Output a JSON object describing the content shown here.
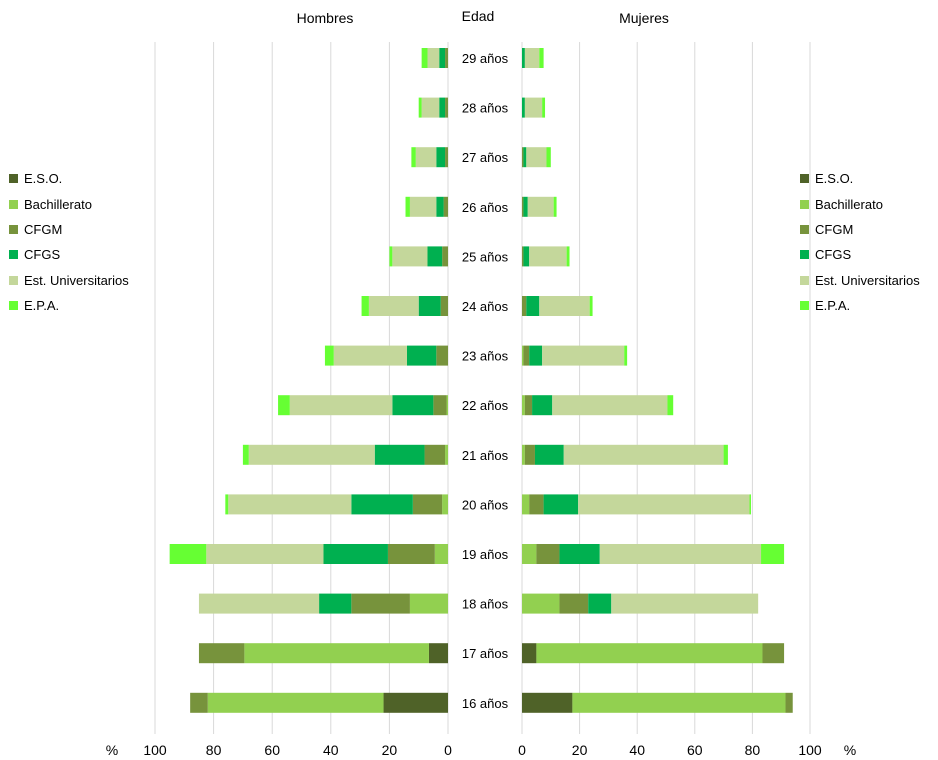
{
  "chart_data": {
    "type": "bar",
    "subtype": "population-pyramid (stacked horizontal bars)",
    "headers": {
      "left": "Hombres",
      "center": "Edad",
      "right": "Mujeres"
    },
    "unit_label": "%",
    "xlim": [
      0,
      100
    ],
    "ticks": [
      0,
      20,
      40,
      60,
      80,
      100
    ],
    "grid": true,
    "legend_position": "both sides (left and right)",
    "series": [
      {
        "key": "eso",
        "name": "E.S.O.",
        "color": "#4f6228"
      },
      {
        "key": "bach",
        "name": "Bachillerato",
        "color": "#92d050"
      },
      {
        "key": "cfgm",
        "name": "CFGM",
        "color": "#77933c"
      },
      {
        "key": "cfgs",
        "name": "CFGS",
        "color": "#00b050"
      },
      {
        "key": "univ",
        "name": "Est. Universitarios",
        "color": "#c4d79b"
      },
      {
        "key": "epa",
        "name": "E.P.A.",
        "color": "#66ff33"
      }
    ],
    "categories": [
      "29 años",
      "28 años",
      "27 años",
      "26 años",
      "25 años",
      "24 años",
      "23 años",
      "22 años",
      "21 años",
      "20 años",
      "19 años",
      "18 años",
      "17 años",
      "16 años"
    ],
    "men": [
      {
        "eso": 0,
        "bach": 0,
        "cfgm": 1,
        "cfgs": 2,
        "univ": 4,
        "epa": 2
      },
      {
        "eso": 0,
        "bach": 0,
        "cfgm": 1,
        "cfgs": 2,
        "univ": 6,
        "epa": 1
      },
      {
        "eso": 0,
        "bach": 0,
        "cfgm": 1,
        "cfgs": 3,
        "univ": 7,
        "epa": 1.5
      },
      {
        "eso": 0,
        "bach": 0,
        "cfgm": 1.5,
        "cfgs": 2.5,
        "univ": 9,
        "epa": 1.5
      },
      {
        "eso": 0,
        "bach": 0,
        "cfgm": 2,
        "cfgs": 5,
        "univ": 12,
        "epa": 1
      },
      {
        "eso": 0,
        "bach": 0,
        "cfgm": 2.5,
        "cfgs": 7.5,
        "univ": 17,
        "epa": 2.5
      },
      {
        "eso": 0,
        "bach": 0,
        "cfgm": 4,
        "cfgs": 10,
        "univ": 25,
        "epa": 3
      },
      {
        "eso": 0,
        "bach": 0.5,
        "cfgm": 4.5,
        "cfgs": 14,
        "univ": 35,
        "epa": 4
      },
      {
        "eso": 0,
        "bach": 1,
        "cfgm": 7,
        "cfgs": 17,
        "univ": 43,
        "epa": 2
      },
      {
        "eso": 0,
        "bach": 2,
        "cfgm": 10,
        "cfgs": 21,
        "univ": 42,
        "epa": 1
      },
      {
        "eso": 0,
        "bach": 4.5,
        "cfgm": 16,
        "cfgs": 22,
        "univ": 40,
        "epa": 12.5
      },
      {
        "eso": 0,
        "bach": 13,
        "cfgm": 20,
        "cfgs": 11,
        "univ": 41,
        "epa": 0
      },
      {
        "eso": 6.5,
        "bach": 63,
        "cfgm": 15.5,
        "cfgs": 0,
        "univ": 0,
        "epa": 0
      },
      {
        "eso": 22,
        "bach": 60,
        "cfgm": 6,
        "cfgs": 0,
        "univ": 0,
        "epa": 0
      }
    ],
    "women": [
      {
        "eso": 0,
        "bach": 0,
        "cfgm": 0,
        "cfgs": 1,
        "univ": 5,
        "epa": 1.5
      },
      {
        "eso": 0,
        "bach": 0,
        "cfgm": 0,
        "cfgs": 1,
        "univ": 6,
        "epa": 1
      },
      {
        "eso": 0,
        "bach": 0,
        "cfgm": 0.5,
        "cfgs": 1,
        "univ": 7,
        "epa": 1.5
      },
      {
        "eso": 0,
        "bach": 0,
        "cfgm": 0.5,
        "cfgs": 1.5,
        "univ": 9,
        "epa": 1
      },
      {
        "eso": 0,
        "bach": 0,
        "cfgm": 0.5,
        "cfgs": 2,
        "univ": 13,
        "epa": 1
      },
      {
        "eso": 0,
        "bach": 0,
        "cfgm": 1.5,
        "cfgs": 4.5,
        "univ": 17.5,
        "epa": 1
      },
      {
        "eso": 0,
        "bach": 0.5,
        "cfgm": 2,
        "cfgs": 4.5,
        "univ": 28.5,
        "epa": 1
      },
      {
        "eso": 0,
        "bach": 1,
        "cfgm": 2.5,
        "cfgs": 7,
        "univ": 40,
        "epa": 2
      },
      {
        "eso": 0,
        "bach": 1,
        "cfgm": 3.5,
        "cfgs": 10,
        "univ": 55.5,
        "epa": 1.5
      },
      {
        "eso": 0,
        "bach": 2.5,
        "cfgm": 5,
        "cfgs": 12,
        "univ": 59.5,
        "epa": 0.5
      },
      {
        "eso": 0,
        "bach": 5,
        "cfgm": 8,
        "cfgs": 14,
        "univ": 56,
        "epa": 8
      },
      {
        "eso": 0,
        "bach": 13,
        "cfgm": 10,
        "cfgs": 8,
        "univ": 51,
        "epa": 0
      },
      {
        "eso": 5,
        "bach": 78.5,
        "cfgm": 7.5,
        "cfgs": 0,
        "univ": 0,
        "epa": 0
      },
      {
        "eso": 17.5,
        "bach": 74,
        "cfgm": 2.5,
        "cfgs": 0,
        "univ": 0,
        "epa": 0
      }
    ]
  }
}
